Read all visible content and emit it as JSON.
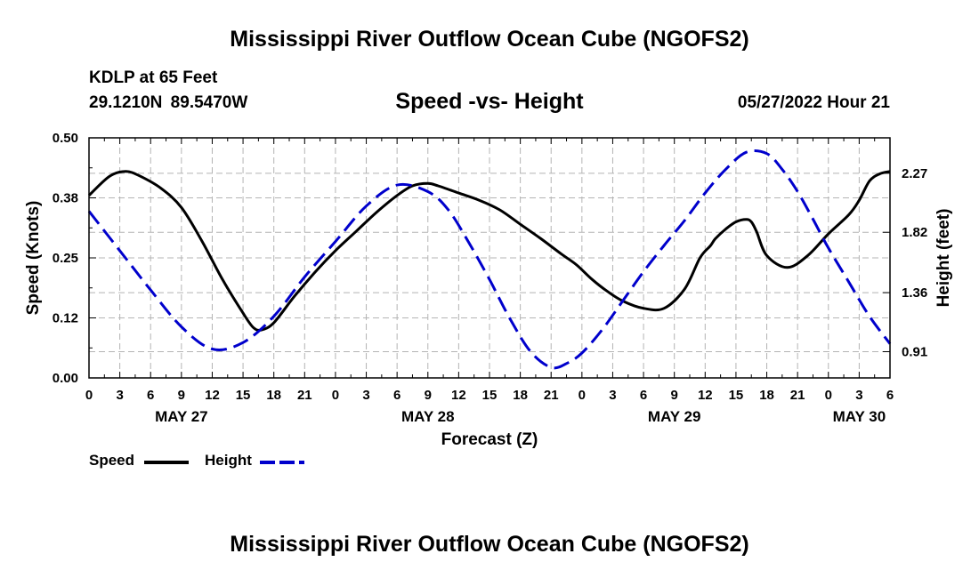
{
  "header": {
    "title": "Mississippi River Outflow Ocean Cube (NGOFS2)",
    "station": "KDLP at 65 Feet",
    "coords": "29.1210N  89.5470W",
    "subtitle": "Speed -vs- Height",
    "datetime": "05/27/2022 Hour 21",
    "bottom_title": "Mississippi River Outflow Ocean Cube (NGOFS2)"
  },
  "legend": {
    "speed": "Speed",
    "height": "Height"
  },
  "colors": {
    "speed": "#000000",
    "height": "#0000cc",
    "grid": "#b4b4b4"
  },
  "chart_data": {
    "type": "line",
    "xlabel": "Forecast (Z)",
    "ylabel_left": "Speed (Knots)",
    "ylabel_right": "Height (feet)",
    "xlim": [
      0,
      78
    ],
    "ylim_left": [
      0,
      0.5
    ],
    "ylim_right": [
      0.71,
      2.54
    ],
    "x_tick_labels": [
      "0",
      "3",
      "6",
      "9",
      "12",
      "15",
      "18",
      "21",
      "0",
      "3",
      "6",
      "9",
      "12",
      "15",
      "18",
      "21",
      "0",
      "3",
      "6",
      "9",
      "12",
      "15",
      "18",
      "21",
      "0",
      "3",
      "6"
    ],
    "left_tick_values": [
      0.0,
      0.125,
      0.25,
      0.375,
      0.5
    ],
    "left_tick_labels": [
      "0.00",
      "0.12",
      "0.25",
      "0.38",
      "0.50"
    ],
    "right_tick_values": [
      0.91,
      1.36,
      1.82,
      2.27
    ],
    "right_tick_labels": [
      "0.91",
      "1.36",
      "1.82",
      "2.27"
    ],
    "date_labels": [
      {
        "x": 9,
        "label": "MAY 27"
      },
      {
        "x": 33,
        "label": "MAY 28"
      },
      {
        "x": 57,
        "label": "MAY 29"
      },
      {
        "x": 75,
        "label": "MAY 30"
      }
    ],
    "series": [
      {
        "name": "Speed",
        "axis": "left",
        "style": "solid",
        "x": [
          0,
          2,
          3.6,
          5,
          7,
          9,
          11,
          13,
          15,
          16,
          16.8,
          18,
          20,
          22,
          24,
          26,
          28,
          30,
          31.5,
          33,
          34,
          36,
          38,
          40,
          42,
          44,
          46,
          47.5,
          49,
          50.5,
          52,
          54,
          56,
          58,
          59.5,
          60.5,
          61,
          62,
          63,
          64,
          64.5,
          65,
          66,
          68,
          70,
          72,
          74,
          75,
          76,
          77,
          78
        ],
        "y": [
          0.38,
          0.42,
          0.43,
          0.42,
          0.395,
          0.355,
          0.285,
          0.205,
          0.135,
          0.105,
          0.1,
          0.115,
          0.17,
          0.22,
          0.265,
          0.305,
          0.345,
          0.38,
          0.4,
          0.405,
          0.4,
          0.385,
          0.37,
          0.35,
          0.32,
          0.29,
          0.258,
          0.235,
          0.205,
          0.18,
          0.16,
          0.145,
          0.145,
          0.185,
          0.25,
          0.275,
          0.29,
          0.31,
          0.325,
          0.33,
          0.325,
          0.305,
          0.255,
          0.23,
          0.255,
          0.3,
          0.34,
          0.37,
          0.41,
          0.425,
          0.43
        ]
      },
      {
        "name": "Height",
        "axis": "right",
        "style": "dashed",
        "x": [
          0,
          3,
          6,
          9,
          12,
          15,
          18,
          21,
          24,
          27,
          30,
          33,
          35,
          37,
          39,
          41,
          43,
          45,
          46.5,
          48,
          50,
          52,
          54,
          56,
          58,
          60,
          62,
          64,
          66,
          67.5,
          69,
          70.5,
          72,
          74,
          76,
          78
        ],
        "y": [
          1.98,
          1.68,
          1.38,
          1.1,
          0.93,
          0.98,
          1.18,
          1.48,
          1.75,
          2.02,
          2.18,
          2.13,
          1.99,
          1.74,
          1.46,
          1.16,
          0.91,
          0.79,
          0.82,
          0.9,
          1.08,
          1.3,
          1.52,
          1.72,
          1.91,
          2.12,
          2.3,
          2.43,
          2.42,
          2.3,
          2.13,
          1.92,
          1.7,
          1.44,
          1.18,
          0.97
        ]
      }
    ]
  }
}
